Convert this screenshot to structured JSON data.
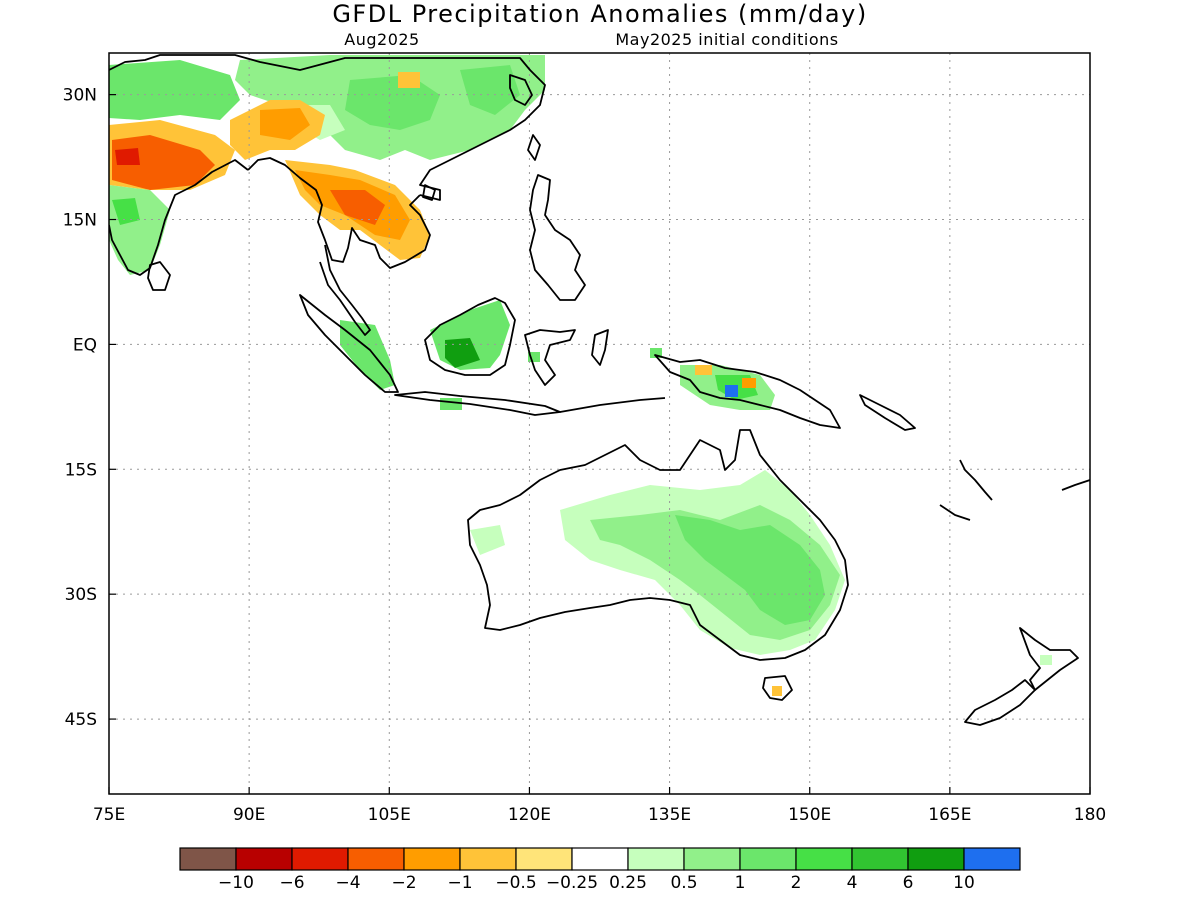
{
  "title": "GFDL Precipitation Anomalies (mm/day)",
  "subtitle_left": "Aug2025",
  "subtitle_right": "May2025 initial conditions",
  "map": {
    "lon_range": [
      75,
      180
    ],
    "lat_range": [
      -54,
      35
    ],
    "x_ticks": [
      {
        "value": 75,
        "label": "75E"
      },
      {
        "value": 90,
        "label": "90E"
      },
      {
        "value": 105,
        "label": "105E"
      },
      {
        "value": 120,
        "label": "120E"
      },
      {
        "value": 135,
        "label": "135E"
      },
      {
        "value": 150,
        "label": "150E"
      },
      {
        "value": 165,
        "label": "165E"
      },
      {
        "value": 180,
        "label": "180"
      }
    ],
    "y_ticks": [
      {
        "value": 30,
        "label": "30N"
      },
      {
        "value": 15,
        "label": "15N"
      },
      {
        "value": 0,
        "label": "EQ"
      },
      {
        "value": -15,
        "label": "15S"
      },
      {
        "value": -30,
        "label": "30S"
      },
      {
        "value": -45,
        "label": "45S"
      }
    ],
    "grid": "dotted"
  },
  "colorbar": {
    "colors": [
      "#7f5548",
      "#b80000",
      "#e01a00",
      "#f75e00",
      "#ff9d00",
      "#ffc338",
      "#ffe479",
      "#ffffff",
      "#c6ffbd",
      "#91f08a",
      "#6be66b",
      "#46e046",
      "#31c431",
      "#109e10",
      "#1e6fef"
    ],
    "labels": [
      "-10",
      "-6",
      "-4",
      "-2",
      "-1",
      "-0.5",
      "-0.25",
      "0.25",
      "0.5",
      "1",
      "2",
      "4",
      "6",
      "10"
    ]
  }
}
